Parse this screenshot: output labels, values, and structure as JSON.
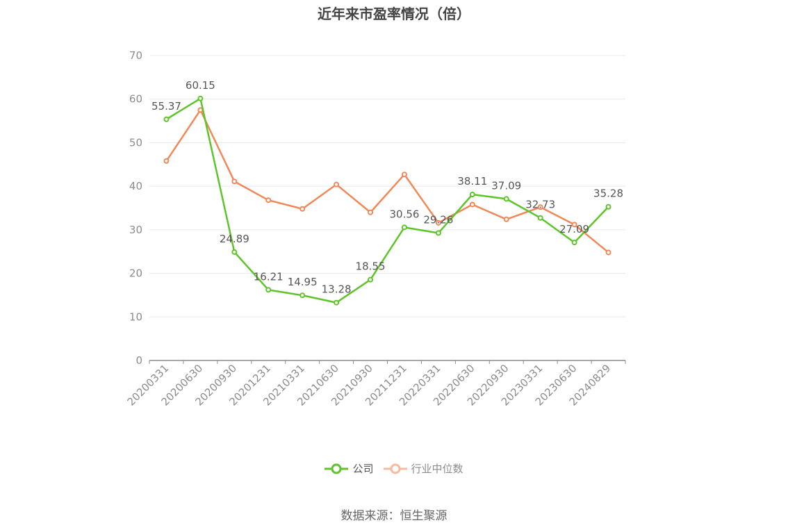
{
  "title": "近年来市盈率情况（倍）",
  "source": "数据来源：恒生聚源",
  "colors": {
    "company": "#5ec42a",
    "industry": "#f0885a",
    "industry_legend": "#f7b9a0",
    "grid": "#e6e8f0",
    "axis": "#8c8c8c"
  },
  "chart_data": {
    "type": "line",
    "title": "近年来市盈率情况（倍）",
    "ylim": [
      0,
      70
    ],
    "yticks": [
      0,
      10,
      20,
      30,
      40,
      50,
      60,
      70
    ],
    "grid": true,
    "legend_position": "bottom",
    "categories": [
      "20200331",
      "20200630",
      "20200930",
      "20201231",
      "20210331",
      "20210630",
      "20210930",
      "20211231",
      "20220331",
      "20220630",
      "20220930",
      "20230331",
      "20230630",
      "20240829"
    ],
    "series": [
      {
        "name": "公司",
        "values": [
          55.37,
          60.15,
          24.89,
          16.21,
          14.95,
          13.28,
          18.55,
          30.56,
          29.26,
          38.11,
          37.09,
          32.73,
          27.09,
          35.28
        ],
        "labels_shown": true
      },
      {
        "name": "行业中位数",
        "values": [
          45.8,
          57.5,
          41.1,
          36.8,
          34.8,
          40.4,
          34.0,
          42.7,
          31.6,
          35.8,
          32.4,
          35.2,
          31.2,
          24.8
        ],
        "labels_shown": false
      }
    ]
  },
  "legend": [
    {
      "name": "公司",
      "icon": "circle-line-icon"
    },
    {
      "name": "行业中位数",
      "icon": "circle-line-icon"
    }
  ]
}
